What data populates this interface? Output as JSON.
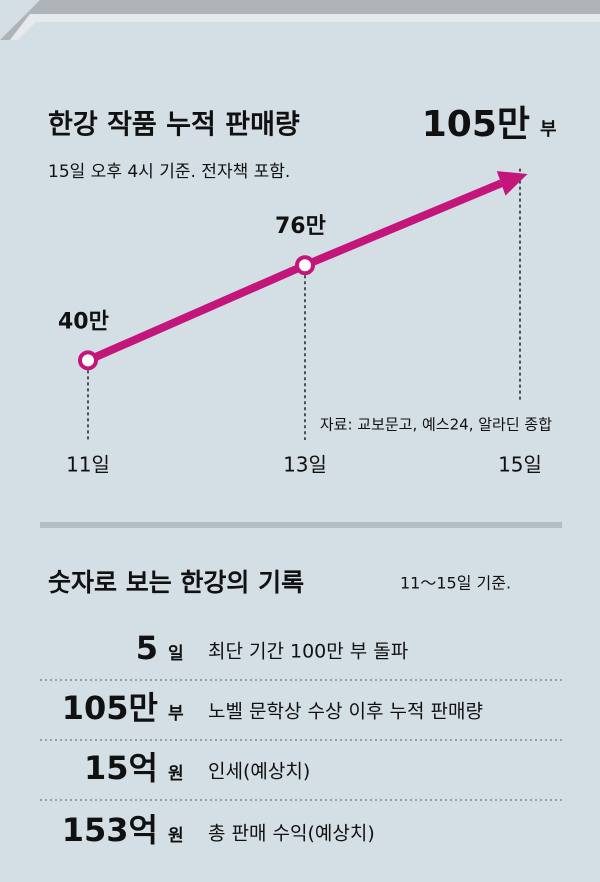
{
  "chart_data": {
    "type": "line",
    "title": "한강 작품 누적 판매량",
    "subtitle": "15일 오후 4시 기준. 전자책 포함.",
    "categories": [
      "11일",
      "13일",
      "15일"
    ],
    "values": [
      40,
      76,
      105
    ],
    "value_labels": [
      "40만",
      "76만",
      "105만"
    ],
    "unit": "부",
    "color": "#c3157a",
    "ylim": [
      0,
      120
    ],
    "source": "자료: 교보문고, 예스24, 알라딘 종합"
  },
  "records": {
    "title": "숫자로 보는 한강의 기록",
    "note": "11～15일 기준.",
    "rows": [
      {
        "value": "5",
        "unit": "일",
        "text": "최단 기간 100만 부 돌파"
      },
      {
        "value": "105만",
        "unit": "부",
        "text": "노벨 문학상 수상 이후 누적 판매량"
      },
      {
        "value": "15억",
        "unit": "원",
        "text": "인세(예상치)"
      },
      {
        "value": "153억",
        "unit": "원",
        "text": "총 판매 수익(예상치)"
      }
    ]
  }
}
